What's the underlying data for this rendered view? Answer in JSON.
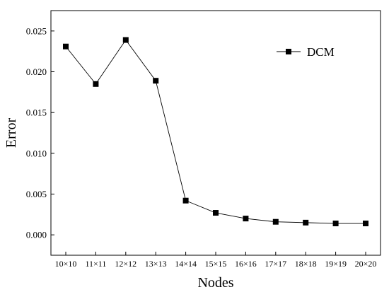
{
  "chart_data": {
    "type": "line",
    "xlabel": "Nodes",
    "ylabel": "Error",
    "categories": [
      "10×10",
      "11×11",
      "12×12",
      "13×13",
      "14×14",
      "15×15",
      "16×16",
      "17×17",
      "18×18",
      "19×19",
      "20×20"
    ],
    "series": [
      {
        "name": "DCM",
        "values": [
          0.0231,
          0.0185,
          0.0239,
          0.0189,
          0.0042,
          0.0027,
          0.002,
          0.0016,
          0.0015,
          0.0014,
          0.0014
        ],
        "color": "#000000",
        "marker": "square"
      }
    ],
    "ylim": [
      -0.0025,
      0.0275
    ],
    "yticks": [
      "0.000",
      "0.005",
      "0.010",
      "0.015",
      "0.020",
      "0.025"
    ],
    "ytick_values": [
      0.0,
      0.005,
      0.01,
      0.015,
      0.02,
      0.025
    ],
    "grid": false,
    "legend_position": "top-right"
  }
}
